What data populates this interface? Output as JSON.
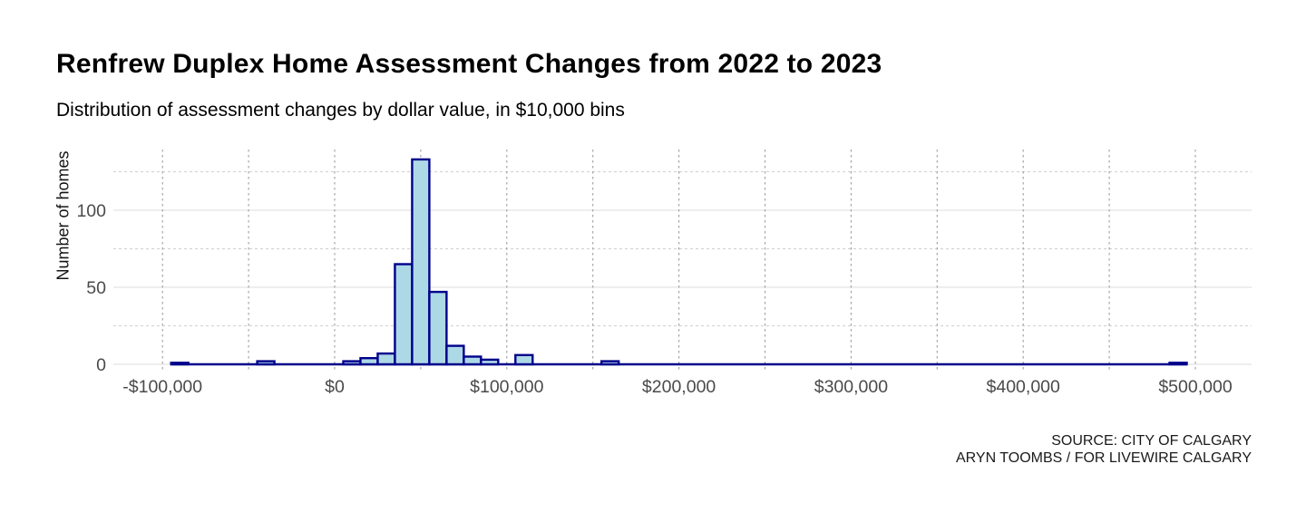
{
  "header": {
    "title": "Renfrew Duplex Home Assessment Changes from 2022 to 2023",
    "subtitle": "Distribution of assessment changes by dollar value, in $10,000 bins"
  },
  "footer": {
    "source_line1": "SOURCE: CITY OF CALGARY",
    "source_line2": "ARYN TOOMBS / FOR LIVEWIRE CALGARY"
  },
  "colors": {
    "bar_fill": "#ADD8E6",
    "bar_stroke": "#00008B",
    "grid_major": "#e8e8e8",
    "grid_minor_dashed": "#d4d4d4",
    "grid_vertical_dashed": "#9e9e9e",
    "axis_text": "#4a4a4a"
  },
  "chart_data": {
    "type": "bar",
    "subtype": "histogram",
    "title": "Renfrew Duplex Home Assessment Changes from 2022 to 2023",
    "xlabel": "",
    "ylabel": "Number of homes",
    "binwidth": 10000,
    "bins": [
      {
        "center": -90000,
        "count": 1
      },
      {
        "center": -40000,
        "count": 2
      },
      {
        "center": 10000,
        "count": 2
      },
      {
        "center": 20000,
        "count": 4
      },
      {
        "center": 30000,
        "count": 7
      },
      {
        "center": 40000,
        "count": 65
      },
      {
        "center": 50000,
        "count": 133
      },
      {
        "center": 60000,
        "count": 47
      },
      {
        "center": 70000,
        "count": 12
      },
      {
        "center": 80000,
        "count": 5
      },
      {
        "center": 90000,
        "count": 3
      },
      {
        "center": 110000,
        "count": 6
      },
      {
        "center": 160000,
        "count": 2
      },
      {
        "center": 490000,
        "count": 1
      }
    ],
    "zero_bins_note": "all other 10k bins between -95000 and 495000 have count 0; they render as a flat navy baseline",
    "baseline_extent": [
      -95000,
      495000
    ],
    "x_ticks": [
      {
        "value": -100000,
        "label": "-$100,000"
      },
      {
        "value": 0,
        "label": "$0"
      },
      {
        "value": 100000,
        "label": "$100,000"
      },
      {
        "value": 200000,
        "label": "$200,000"
      },
      {
        "value": 300000,
        "label": "$300,000"
      },
      {
        "value": 400000,
        "label": "$400,000"
      },
      {
        "value": 500000,
        "label": "$500,000"
      }
    ],
    "x_minor_step": 50000,
    "x_minor_range": [
      -100000,
      500000
    ],
    "y_ticks": [
      {
        "value": 0,
        "label": "0"
      },
      {
        "value": 50,
        "label": "50"
      },
      {
        "value": 100,
        "label": "100"
      }
    ],
    "y_minor_ticks": [
      25,
      75,
      125
    ],
    "ylim": [
      0,
      140
    ],
    "xlim": [
      -130000,
      530000
    ],
    "legend": "none",
    "grid": "horizontal major solid, horizontal minor dashed, vertical dashed every 50k"
  }
}
